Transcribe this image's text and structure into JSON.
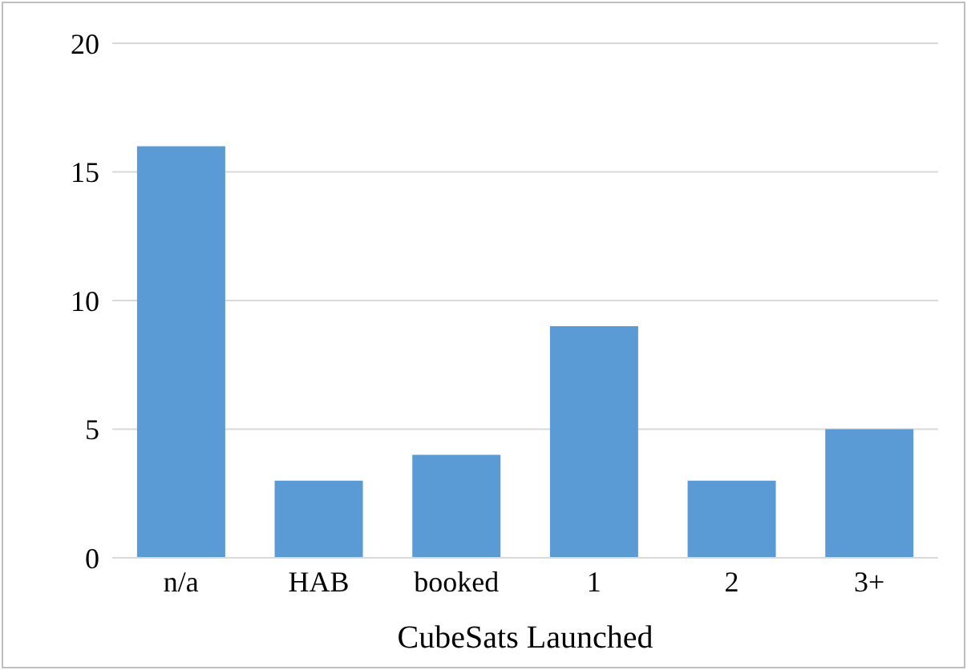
{
  "chart_data": {
    "type": "bar",
    "xlabel": "CubeSats Launched",
    "categories": [
      "n/a",
      "HAB",
      "booked",
      "1",
      "2",
      "3+"
    ],
    "values": [
      16,
      3,
      4,
      9,
      3,
      5
    ],
    "color": "#5b9bd5",
    "ylim": [
      0,
      20
    ],
    "yticks": [
      0,
      5,
      10,
      15,
      20
    ],
    "grid": "y"
  }
}
